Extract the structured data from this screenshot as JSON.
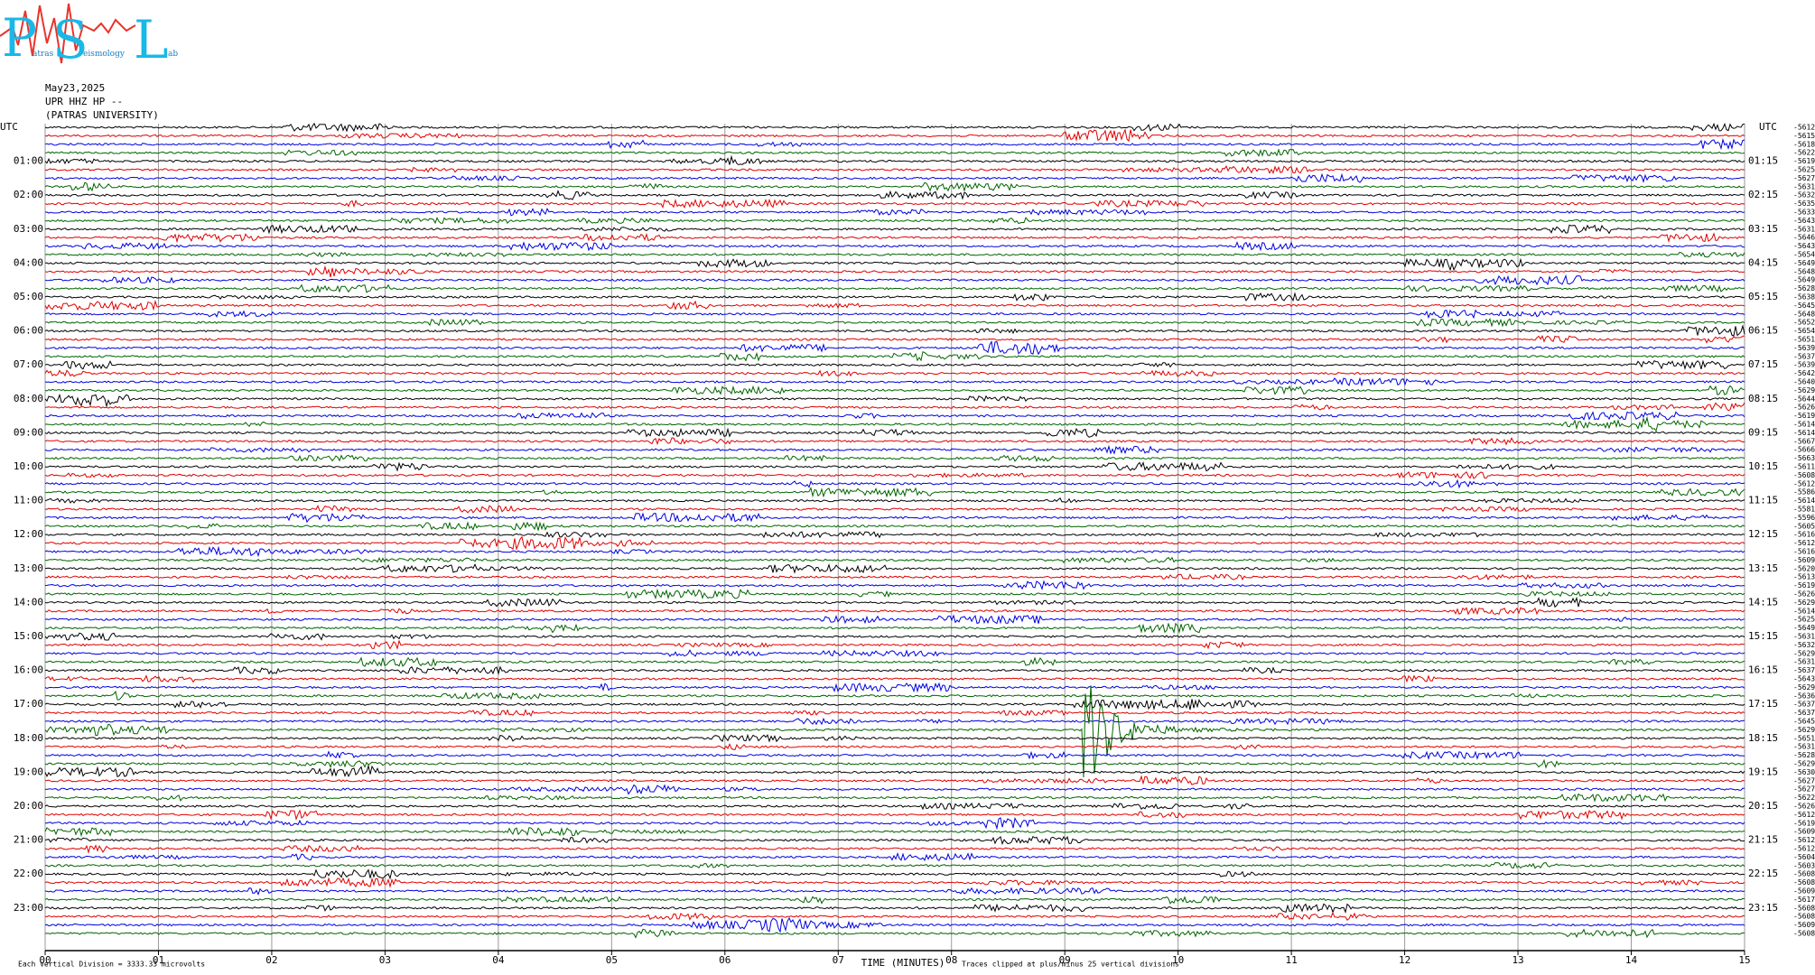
{
  "logo": {
    "p": "P",
    "p_rest": "atras",
    "s": "S",
    "s_rest": "eismology",
    "l": "L",
    "l_rest": "ab"
  },
  "header": {
    "date": "May23,2025",
    "station": "UPR HHZ HP --",
    "organization": "(PATRAS UNIVERSITY)"
  },
  "left_title": "UTC",
  "right_title": "UTC",
  "left_labels": [
    "01:00",
    "02:00",
    "03:00",
    "04:00",
    "05:00",
    "06:00",
    "07:00",
    "08:00",
    "09:00",
    "10:00",
    "11:00",
    "12:00",
    "13:00",
    "14:00",
    "15:00",
    "16:00",
    "17:00",
    "18:00",
    "19:00",
    "20:00",
    "21:00",
    "22:00",
    "23:00"
  ],
  "right_labels": [
    "01:15",
    "02:15",
    "03:15",
    "04:15",
    "05:15",
    "06:15",
    "07:15",
    "08:15",
    "09:15",
    "10:15",
    "11:15",
    "12:15",
    "13:15",
    "14:15",
    "15:15",
    "16:15",
    "17:15",
    "18:15",
    "19:15",
    "20:15",
    "21:15",
    "22:15",
    "23:15"
  ],
  "trace_offsets": [
    -5612,
    -5615,
    -5618,
    -5622,
    -5619,
    -5625,
    -5627,
    -5631,
    -5632,
    -5635,
    -5633,
    -5643,
    -5631,
    -5646,
    -5643,
    -5654,
    -5649,
    -5648,
    -5649,
    -5628,
    -5638,
    -5645,
    -5648,
    -5652,
    -5654,
    -5651,
    -5639,
    -5637,
    -5639,
    -5642,
    -5640,
    -5629,
    -5644,
    -5626,
    -5619,
    -5614,
    -5614,
    -5667,
    -5666,
    -5663,
    -5611,
    -5608,
    -5612,
    -5586,
    -5614,
    -5581,
    -5596,
    -5605,
    -5616,
    -5612,
    -5616,
    -5609,
    -5620,
    -5613,
    -5619,
    -5626,
    -5629,
    -5614,
    -5625,
    -5649,
    -5631,
    -5632,
    -5629,
    -5631,
    -5637,
    -5643,
    -5629,
    -5636,
    -5637,
    -5637,
    -5645,
    -5629,
    -5651,
    -5631,
    -5628,
    -5629,
    -5630,
    -5627,
    -5627,
    -5622,
    -5626,
    -5612,
    -5619,
    -5609,
    -5612,
    -5612,
    -5604,
    -5603,
    -5608,
    -5608,
    -5609,
    -5617,
    -5608,
    -5608,
    -5609,
    -5608
  ],
  "x_axis": {
    "ticks": [
      "00",
      "01",
      "02",
      "03",
      "04",
      "05",
      "06",
      "07",
      "08",
      "09",
      "10",
      "11",
      "12",
      "13",
      "14",
      "15"
    ],
    "label": "TIME (MINUTES)"
  },
  "footer": {
    "scale_note": "Each Vertical Division = 3333.33 microvolts",
    "clip_note": "Traces clipped at plus/minus 25 vertical divisions"
  }
}
